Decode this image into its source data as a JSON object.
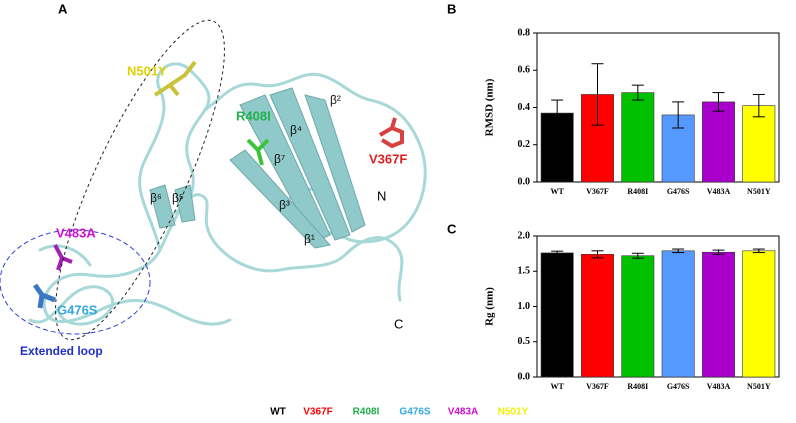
{
  "structure": {
    "panel": "A",
    "mutations": [
      "N501Y",
      "R408I",
      "V367F",
      "V483A",
      "G476S"
    ],
    "loop_label": "Extended loop",
    "strands": [
      "β¹",
      "β²",
      "β³",
      "β⁴",
      "β⁵",
      "β⁶",
      "β⁷"
    ],
    "termini": [
      "N",
      "C"
    ]
  },
  "chart_data": [
    {
      "type": "bar",
      "panel": "B",
      "ylabel": "RMSD (nm)",
      "categories": [
        "WT",
        "V367F",
        "R408I",
        "G476S",
        "V483A",
        "N501Y"
      ],
      "values": [
        0.37,
        0.47,
        0.48,
        0.36,
        0.43,
        0.41
      ],
      "errors": [
        0.07,
        0.165,
        0.04,
        0.07,
        0.05,
        0.06
      ],
      "colors": [
        "#000000",
        "#ff0000",
        "#00c000",
        "#5599ff",
        "#aa00cc",
        "#ffff00"
      ],
      "ylim": [
        0,
        0.8
      ],
      "yticks": [
        {
          "value": 0,
          "label": "0.0"
        },
        0.2,
        0.4,
        0.6,
        0.8
      ]
    },
    {
      "type": "bar",
      "panel": "C",
      "ylabel": "Rg (nm)",
      "categories": [
        "WT",
        "V367F",
        "R408I",
        "G476S",
        "V483A",
        "N501Y"
      ],
      "values": [
        1.76,
        1.74,
        1.72,
        1.79,
        1.77,
        1.79
      ],
      "errors": [
        0.025,
        0.05,
        0.035,
        0.025,
        0.03,
        0.025
      ],
      "colors": [
        "#000000",
        "#ff0000",
        "#00c000",
        "#5599ff",
        "#aa00cc",
        "#ffff00"
      ],
      "ylim": [
        0,
        2.0
      ],
      "yticks": [
        {
          "value": 0,
          "label": "0.0"
        },
        0.5,
        {
          "value": 1.0,
          "label": "1.0"
        },
        1.5,
        {
          "value": 2.0,
          "label": "2.0"
        }
      ]
    }
  ],
  "legend": {
    "items": [
      "WT",
      "V367F",
      "R408I",
      "G476S",
      "V483A",
      "N501Y"
    ],
    "colors": [
      "#000000",
      "#ff0000",
      "#22b04a",
      "#30a8e0",
      "#d010d0",
      "#f0f000"
    ]
  }
}
